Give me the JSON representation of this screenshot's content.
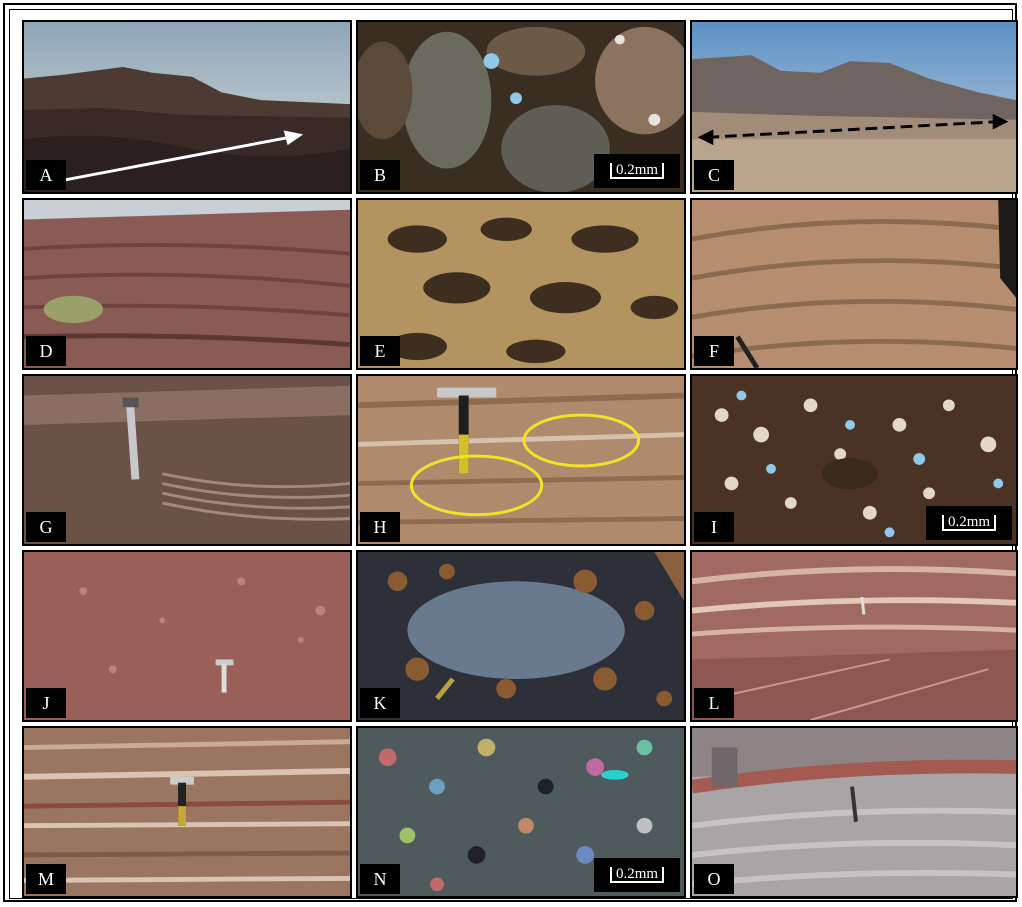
{
  "panels": {
    "A": {
      "label": "A"
    },
    "B": {
      "label": "B",
      "scale": "0.2mm"
    },
    "C": {
      "label": "C"
    },
    "D": {
      "label": "D"
    },
    "E": {
      "label": "E"
    },
    "F": {
      "label": "F"
    },
    "G": {
      "label": "G"
    },
    "H": {
      "label": "H"
    },
    "I": {
      "label": "I",
      "scale": "0.2mm"
    },
    "J": {
      "label": "J"
    },
    "K": {
      "label": "K"
    },
    "L": {
      "label": "L"
    },
    "M": {
      "label": "M"
    },
    "N": {
      "label": "N",
      "scale": "0.2mm"
    },
    "O": {
      "label": "O"
    }
  },
  "colors": {
    "sky": "#a9bccb",
    "red_outcrop": "#8a5048",
    "tan_sand": "#b38f6c",
    "annotation_yellow": "#f2e22a"
  }
}
